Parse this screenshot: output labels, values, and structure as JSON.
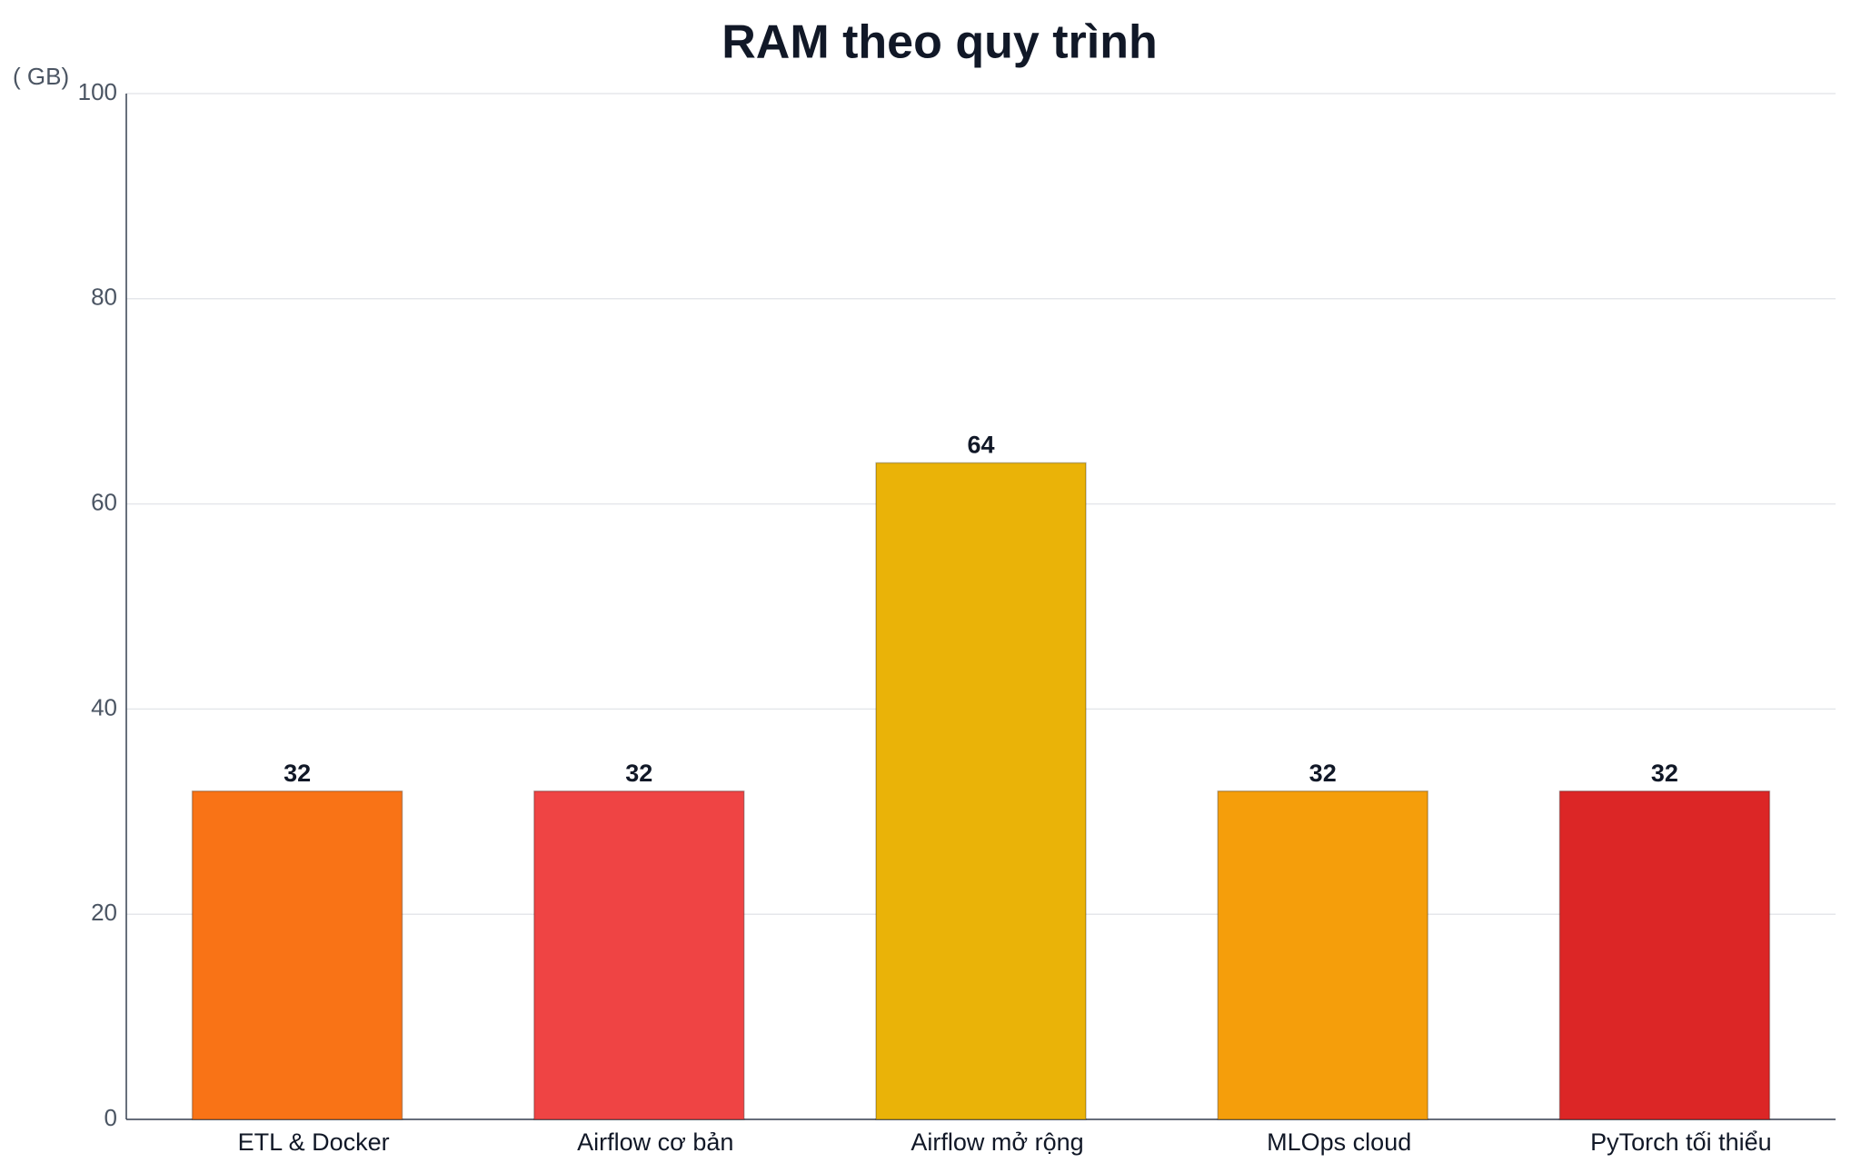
{
  "chart_data": {
    "type": "bar",
    "title": "RAM theo quy trình",
    "y_label": "( GB)",
    "categories": [
      "ETL & Docker",
      "Airflow cơ bản",
      "Airflow mở rộng",
      "MLOps cloud",
      "PyTorch tối thiểu"
    ],
    "values": [
      32,
      32,
      64,
      32,
      32
    ],
    "colors": [
      "#f97316",
      "#ef4444",
      "#eab308",
      "#f59e0b",
      "#dc2626"
    ],
    "ylim": [
      0,
      100
    ],
    "yticks": [
      0,
      20,
      40,
      60,
      80,
      100
    ],
    "grid": true
  }
}
